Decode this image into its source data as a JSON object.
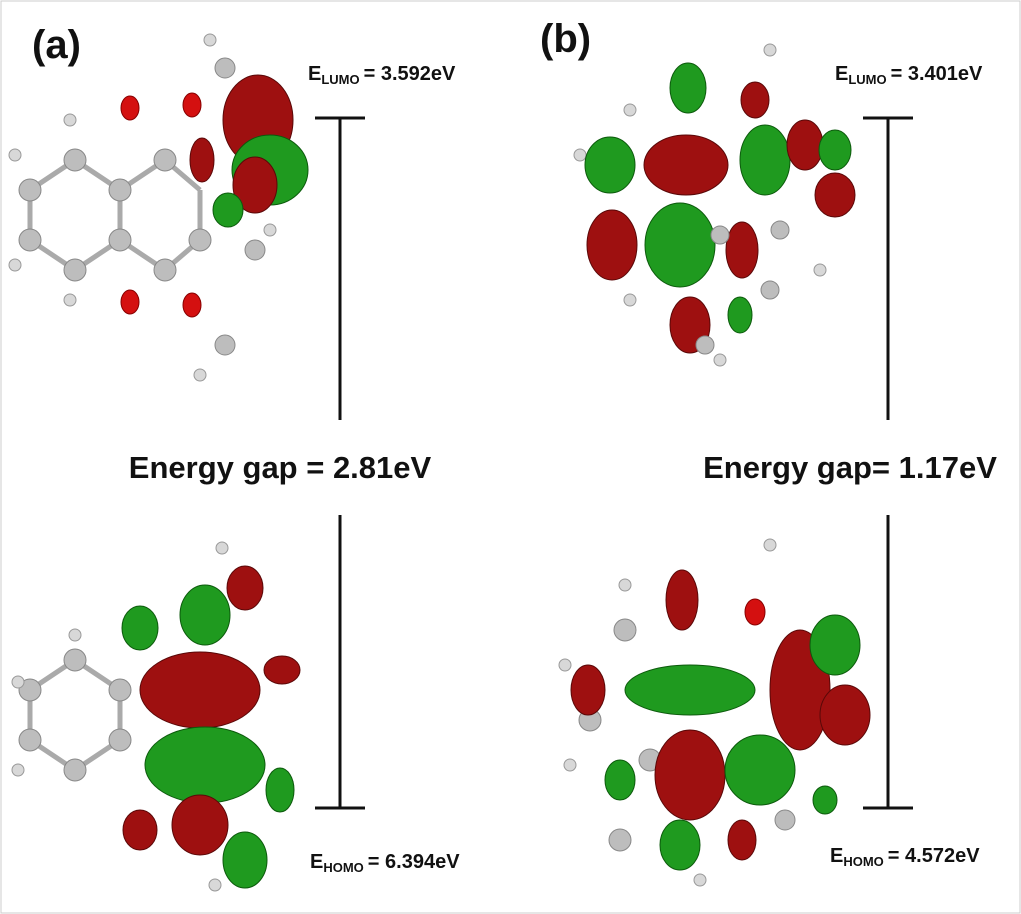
{
  "panels": [
    {
      "label": "(a)",
      "lumo": {
        "symbol": "E",
        "subscript": "LUMO",
        "value": "= 3.592eV"
      },
      "gap": "Energy gap = 2.81eV",
      "homo": {
        "symbol": "E",
        "subscript": "HOMO",
        "value": "= 6.394eV"
      }
    },
    {
      "label": "(b)",
      "lumo": {
        "symbol": "E",
        "subscript": "LUMO",
        "value": "= 3.401eV"
      },
      "gap": "Energy gap= 1.17eV",
      "homo": {
        "symbol": "E",
        "subscript": "HOMO",
        "value": "= 4.572eV"
      }
    }
  ]
}
